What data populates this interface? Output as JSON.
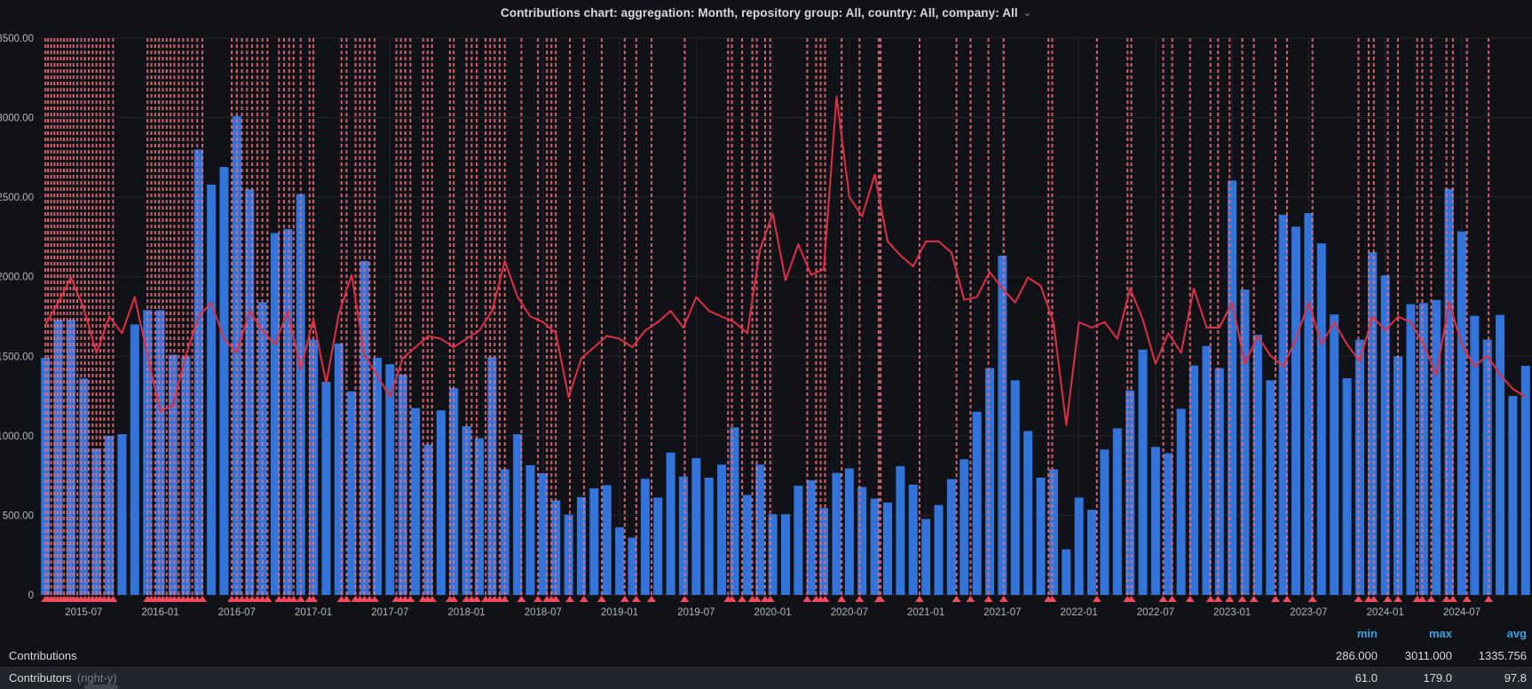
{
  "header": {
    "title": "Contributions chart: aggregation: Month, repository group: All, country: All, company: All",
    "chevron": "⌄"
  },
  "y_axis": {
    "labels": [
      "3500.00",
      "3000.00",
      "2500.00",
      "2000.00",
      "1500.00",
      "1000.00",
      "500.00",
      "0"
    ],
    "max": 3500,
    "step": 500
  },
  "x_axis": {
    "labels": [
      "2015-07",
      "2016-01",
      "2016-07",
      "2017-01",
      "2017-07",
      "2018-01",
      "2018-07",
      "2019-01",
      "2019-07",
      "2020-01",
      "2020-07",
      "2021-01",
      "2021-07",
      "2022-01",
      "2022-07",
      "2023-01",
      "2023-07",
      "2024-01",
      "2024-07"
    ],
    "first_label_month_index": 3,
    "label_every_months": 6
  },
  "chart_data": {
    "type": "bar+line",
    "start_month": "2015-04",
    "months_count": 117,
    "left_axis": {
      "min": 0,
      "max": 3500
    },
    "right_axis": {
      "min": 0,
      "max": 200
    },
    "series": [
      {
        "name": "Contributions",
        "type": "bar",
        "axis": "left",
        "color": "#3274d9",
        "values": [
          1490,
          1730,
          1730,
          1360,
          920,
          1000,
          1010,
          1700,
          1790,
          1790,
          1510,
          1500,
          2800,
          2580,
          2690,
          3011,
          2550,
          1840,
          2275,
          2300,
          2520,
          1605,
          1340,
          1580,
          1280,
          2100,
          1490,
          1450,
          1385,
          1175,
          945,
          1160,
          1300,
          1060,
          985,
          1495,
          790,
          1010,
          815,
          765,
          595,
          505,
          615,
          670,
          690,
          425,
          360,
          730,
          612,
          895,
          744,
          860,
          737,
          819,
          1053,
          628,
          819,
          507,
          507,
          686,
          721,
          546,
          767,
          795,
          679,
          605,
          580,
          809,
          693,
          477,
          565,
          728,
          853,
          1151,
          1426,
          2133,
          1349,
          1030,
          737,
          790,
          286,
          612,
          535,
          914,
          1047,
          1286,
          1542,
          930,
          891,
          1170,
          1442,
          1565,
          1426,
          2605,
          1919,
          1635,
          1349,
          2390,
          2315,
          2400,
          2210,
          1763,
          1362,
          1604,
          2154,
          2009,
          1500,
          1828,
          1835,
          1854,
          2553,
          2285,
          1755,
          1605,
          1760,
          1250,
          1440
        ]
      },
      {
        "name": "Contributors",
        "type": "line",
        "axis": "right",
        "color": "#e02f44",
        "values": [
          97,
          105,
          114,
          103,
          87,
          100,
          94,
          107,
          86,
          66,
          68,
          86,
          100,
          105,
          92,
          87,
          102,
          95,
          90,
          102,
          81,
          99,
          76,
          101,
          115,
          86,
          79,
          71,
          85,
          89,
          93,
          92,
          89,
          92,
          95,
          102,
          120,
          107,
          100,
          98,
          94,
          71,
          85,
          89,
          93,
          92,
          89,
          95,
          98,
          102,
          96,
          107,
          102,
          100,
          98,
          94,
          124,
          137,
          113,
          126,
          115,
          117,
          179,
          143,
          136,
          151,
          127,
          122,
          118,
          127,
          127,
          123,
          106,
          107,
          116,
          110,
          105,
          114,
          111,
          98,
          61,
          98,
          96,
          98,
          92,
          110,
          99,
          83,
          94,
          87,
          110,
          96,
          96,
          105,
          83,
          93,
          86,
          82,
          92,
          105,
          90,
          98,
          90,
          84,
          100,
          95,
          100,
          98,
          90,
          79,
          105,
          90,
          82,
          86,
          79,
          74,
          71
        ]
      }
    ],
    "annotations_month_positions": [
      0.0,
      0.2,
      0.45,
      0.7,
      0.95,
      1.2,
      1.45,
      1.7,
      1.95,
      2.2,
      2.5,
      2.8,
      3.1,
      3.4,
      3.7,
      4.0,
      4.3,
      4.6,
      4.95,
      5.3,
      8.0,
      8.3,
      8.6,
      8.9,
      9.2,
      9.5,
      9.8,
      10.1,
      10.45,
      10.8,
      11.15,
      11.5,
      11.9,
      12.3,
      14.6,
      15.0,
      15.4,
      15.8,
      16.2,
      16.6,
      17.0,
      17.4,
      18.3,
      18.7,
      19.1,
      19.45,
      20.0,
      20.7,
      21.0,
      23.2,
      23.6,
      24.3,
      24.65,
      25.0,
      25.4,
      25.8,
      27.5,
      27.85,
      28.2,
      28.6,
      29.6,
      29.95,
      30.3,
      31.7,
      32.0,
      33.0,
      33.4,
      33.8,
      34.5,
      34.85,
      35.2,
      35.6,
      36.0,
      37.3,
      38.6,
      39.3,
      39.65,
      40.0,
      41.1,
      42.2,
      43.6,
      45.4,
      46.3,
      47.5,
      50.1,
      53.5,
      53.8,
      54.6,
      55.4,
      55.75,
      56.4,
      56.8,
      59.7,
      60.4,
      60.75,
      61.1,
      62.4,
      63.8,
      65.3,
      65.45,
      68.5,
      71.4,
      72.5,
      73.9,
      75.1,
      78.6,
      78.9,
      82.4,
      84.8,
      85.1,
      87.6,
      88.3,
      89.7,
      91.3,
      91.9,
      92.8,
      93.8,
      94.7,
      96.4,
      97.3,
      99.3,
      102.9,
      103.7,
      104.1,
      105.2,
      106.0,
      107.5,
      107.9,
      108.6,
      109.8,
      110.3,
      111.4,
      113.1
    ],
    "title": "Contributions chart",
    "grid": true,
    "legend_position": "bottom"
  },
  "legend": {
    "headers": {
      "min": "min",
      "max": "max",
      "avg": "avg"
    },
    "rows": [
      {
        "label": "Contributions",
        "suffix": "",
        "min": "286.000",
        "max": "3011.000",
        "avg": "1335.756"
      },
      {
        "label": "Contributors",
        "suffix": "(right-y)",
        "min": "61.0",
        "max": "179.0",
        "avg": "97.8"
      }
    ]
  },
  "colors": {
    "background": "#111217",
    "grid": "#24262c",
    "axis_text": "#b0b6bf",
    "bar": "#3274d9",
    "line": "#e02f44",
    "annotation": "#f2707b",
    "annotation_marker": "#f2495c",
    "legend_header": "#33a2e5",
    "legend_row_alt": "#22252b"
  }
}
